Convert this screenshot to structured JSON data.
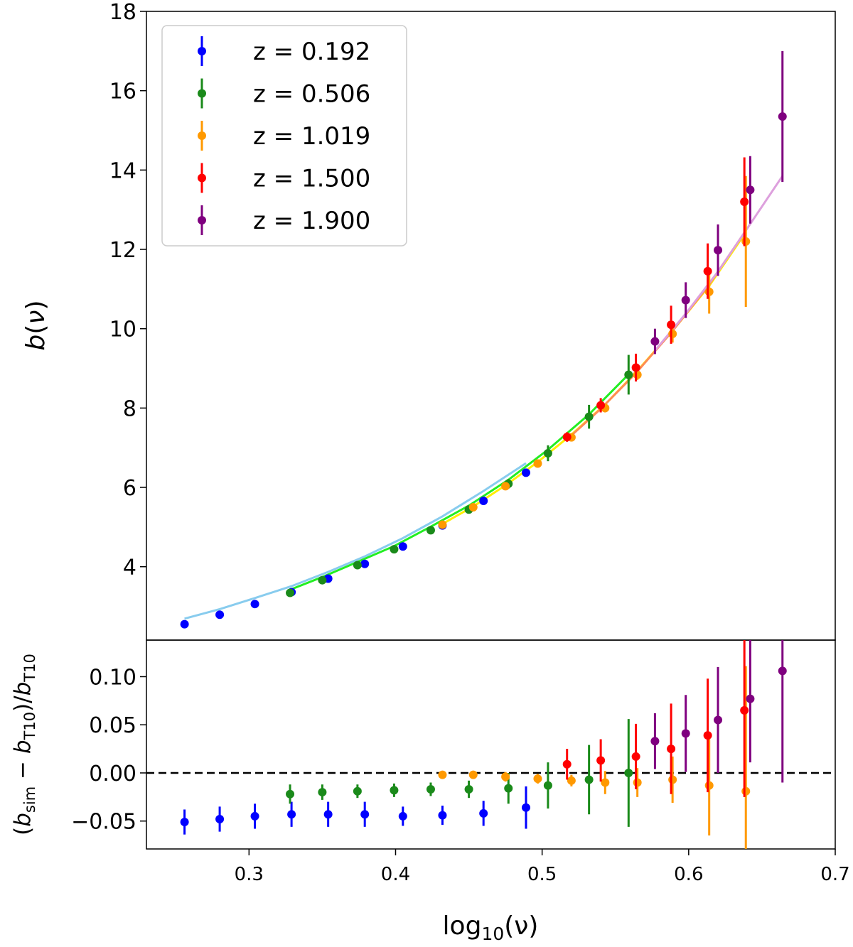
{
  "chart_data": [
    {
      "type": "scatter",
      "panel": "top",
      "ylabel_var": "b",
      "ylabel_arg": "ν",
      "ylabel": "b(ν)",
      "xlim": [
        0.23,
        0.7
      ],
      "ylim": [
        2.15,
        18
      ],
      "yticks": [
        4,
        6,
        8,
        10,
        12,
        14,
        16,
        18
      ],
      "grid": false,
      "legend_position": "top-left",
      "series": [
        {
          "name": "z = 0.192",
          "color": "#0000ff",
          "points": [
            {
              "x": 0.256,
              "y": 2.55,
              "err": 0.06
            },
            {
              "x": 0.28,
              "y": 2.79,
              "err": 0.06
            },
            {
              "x": 0.304,
              "y": 3.06,
              "err": 0.06
            },
            {
              "x": 0.329,
              "y": 3.36,
              "err": 0.07
            },
            {
              "x": 0.354,
              "y": 3.7,
              "err": 0.07
            },
            {
              "x": 0.379,
              "y": 4.07,
              "err": 0.07
            },
            {
              "x": 0.405,
              "y": 4.51,
              "err": 0.08
            },
            {
              "x": 0.432,
              "y": 5.04,
              "err": 0.08
            },
            {
              "x": 0.46,
              "y": 5.66,
              "err": 0.08
            },
            {
              "x": 0.489,
              "y": 6.37,
              "err": 0.1
            }
          ],
          "curve": {
            "color": "#88ccee",
            "x": [
              0.256,
              0.28,
              0.304,
              0.329,
              0.354,
              0.379,
              0.405,
              0.432,
              0.46,
              0.489
            ],
            "y": [
              2.69,
              2.93,
              3.21,
              3.51,
              3.87,
              4.26,
              4.72,
              5.27,
              5.91,
              6.61
            ]
          }
        },
        {
          "name": "z = 0.506",
          "color": "#1a8a1a",
          "points": [
            {
              "x": 0.328,
              "y": 3.34,
              "err": 0.07
            },
            {
              "x": 0.35,
              "y": 3.66,
              "err": 0.07
            },
            {
              "x": 0.374,
              "y": 4.04,
              "err": 0.08
            },
            {
              "x": 0.399,
              "y": 4.44,
              "err": 0.08
            },
            {
              "x": 0.424,
              "y": 4.92,
              "err": 0.08
            },
            {
              "x": 0.45,
              "y": 5.44,
              "err": 0.1
            },
            {
              "x": 0.477,
              "y": 6.09,
              "err": 0.12
            },
            {
              "x": 0.504,
              "y": 6.86,
              "err": 0.2
            },
            {
              "x": 0.532,
              "y": 7.78,
              "err": 0.3
            },
            {
              "x": 0.559,
              "y": 8.84,
              "err": 0.5
            }
          ],
          "curve": {
            "color": "#22ee22",
            "x": [
              0.328,
              0.35,
              0.374,
              0.399,
              0.424,
              0.45,
              0.477,
              0.504,
              0.532,
              0.559
            ],
            "y": [
              3.42,
              3.74,
              4.12,
              4.52,
              5.01,
              5.54,
              6.19,
              6.95,
              7.84,
              8.85
            ]
          }
        },
        {
          "name": "z = 1.019",
          "color": "#ff9900",
          "points": [
            {
              "x": 0.432,
              "y": 5.06,
              "err": 0.06
            },
            {
              "x": 0.453,
              "y": 5.5,
              "err": 0.07
            },
            {
              "x": 0.475,
              "y": 6.03,
              "err": 0.08
            },
            {
              "x": 0.497,
              "y": 6.6,
              "err": 0.08
            },
            {
              "x": 0.52,
              "y": 7.26,
              "err": 0.09
            },
            {
              "x": 0.543,
              "y": 8.0,
              "err": 0.11
            },
            {
              "x": 0.565,
              "y": 8.84,
              "err": 0.13
            },
            {
              "x": 0.589,
              "y": 9.87,
              "err": 0.22
            },
            {
              "x": 0.614,
              "y": 10.93,
              "err": 0.55
            },
            {
              "x": 0.639,
              "y": 12.2,
              "err": 1.65
            }
          ],
          "curve": {
            "color": "#ffee00",
            "x": [
              0.432,
              0.453,
              0.475,
              0.497,
              0.52,
              0.543,
              0.565,
              0.589,
              0.614,
              0.639
            ],
            "y": [
              5.08,
              5.52,
              6.05,
              6.64,
              7.33,
              8.09,
              8.94,
              9.95,
              11.08,
              12.43
            ]
          }
        },
        {
          "name": "z = 1.500",
          "color": "#ff0000",
          "points": [
            {
              "x": 0.517,
              "y": 7.27,
              "err": 0.12
            },
            {
              "x": 0.54,
              "y": 8.07,
              "err": 0.18
            },
            {
              "x": 0.564,
              "y": 9.02,
              "err": 0.35
            },
            {
              "x": 0.588,
              "y": 10.1,
              "err": 0.48
            },
            {
              "x": 0.613,
              "y": 11.45,
              "err": 0.7
            },
            {
              "x": 0.638,
              "y": 13.2,
              "err": 1.12
            }
          ],
          "curve": {
            "color": "#ff8c55",
            "x": [
              0.517,
              0.54,
              0.564,
              0.588,
              0.613,
              0.638
            ],
            "y": [
              7.21,
              7.98,
              8.88,
              9.9,
              11.06,
              12.42
            ]
          }
        },
        {
          "name": "z = 1.900",
          "color": "#7f007f",
          "points": [
            {
              "x": 0.577,
              "y": 9.68,
              "err": 0.32
            },
            {
              "x": 0.598,
              "y": 10.72,
              "err": 0.45
            },
            {
              "x": 0.62,
              "y": 11.98,
              "err": 0.65
            },
            {
              "x": 0.642,
              "y": 13.5,
              "err": 0.85
            },
            {
              "x": 0.664,
              "y": 15.35,
              "err": 1.65
            }
          ],
          "curve": {
            "color": "#dda0dd",
            "x": [
              0.577,
              0.598,
              0.62,
              0.642,
              0.664
            ],
            "y": [
              9.45,
              10.38,
              11.44,
              12.64,
              13.85
            ]
          }
        }
      ]
    },
    {
      "type": "scatter",
      "panel": "bottom",
      "xlabel_base": "log",
      "xlabel_sub": "10",
      "xlabel_arg": "(ν)",
      "xlabel": "log10(ν)",
      "ylabel": "(b_sim − b_T10)/b_T10",
      "ylabel_parts": {
        "open": "(",
        "b": "b",
        "sim": "sim",
        "minus": " − ",
        "t10": "T10",
        "close": ")/"
      },
      "xlim": [
        0.23,
        0.7
      ],
      "ylim": [
        -0.079,
        0.138
      ],
      "xticks": [
        0.3,
        0.4,
        0.5,
        0.6,
        0.7
      ],
      "xtick_labels": [
        "0.3",
        "0.4",
        "0.5",
        "0.6",
        "0.7"
      ],
      "yticks": [
        -0.05,
        0.0,
        0.05,
        0.1
      ],
      "ytick_labels": [
        "−0.05",
        "0.00",
        "0.05",
        "0.10"
      ],
      "reference_line": {
        "y": 0.0,
        "style": "dashed",
        "color": "#000000"
      },
      "grid": false,
      "series": [
        {
          "name": "z = 0.192",
          "color": "#0000ff",
          "points": [
            {
              "x": 0.256,
              "y": -0.051,
              "err": 0.013
            },
            {
              "x": 0.28,
              "y": -0.048,
              "err": 0.013
            },
            {
              "x": 0.304,
              "y": -0.045,
              "err": 0.013
            },
            {
              "x": 0.329,
              "y": -0.043,
              "err": 0.013
            },
            {
              "x": 0.354,
              "y": -0.043,
              "err": 0.013
            },
            {
              "x": 0.379,
              "y": -0.043,
              "err": 0.013
            },
            {
              "x": 0.405,
              "y": -0.045,
              "err": 0.01
            },
            {
              "x": 0.432,
              "y": -0.044,
              "err": 0.01
            },
            {
              "x": 0.46,
              "y": -0.042,
              "err": 0.013
            },
            {
              "x": 0.489,
              "y": -0.036,
              "err": 0.022
            }
          ]
        },
        {
          "name": "z = 0.506",
          "color": "#1a8a1a",
          "points": [
            {
              "x": 0.328,
              "y": -0.022,
              "err": 0.01
            },
            {
              "x": 0.35,
              "y": -0.02,
              "err": 0.008
            },
            {
              "x": 0.374,
              "y": -0.019,
              "err": 0.007
            },
            {
              "x": 0.399,
              "y": -0.018,
              "err": 0.007
            },
            {
              "x": 0.424,
              "y": -0.017,
              "err": 0.007
            },
            {
              "x": 0.45,
              "y": -0.017,
              "err": 0.009
            },
            {
              "x": 0.477,
              "y": -0.016,
              "err": 0.016
            },
            {
              "x": 0.504,
              "y": -0.013,
              "err": 0.024
            },
            {
              "x": 0.532,
              "y": -0.007,
              "err": 0.036
            },
            {
              "x": 0.559,
              "y": 0.0,
              "err": 0.056
            }
          ]
        },
        {
          "name": "z = 1.019",
          "color": "#ff9900",
          "points": [
            {
              "x": 0.432,
              "y": -0.002,
              "err": 0.004
            },
            {
              "x": 0.453,
              "y": -0.002,
              "err": 0.004
            },
            {
              "x": 0.475,
              "y": -0.004,
              "err": 0.005
            },
            {
              "x": 0.497,
              "y": -0.006,
              "err": 0.005
            },
            {
              "x": 0.52,
              "y": -0.008,
              "err": 0.006
            },
            {
              "x": 0.543,
              "y": -0.01,
              "err": 0.012
            },
            {
              "x": 0.565,
              "y": -0.01,
              "err": 0.015
            },
            {
              "x": 0.589,
              "y": -0.007,
              "err": 0.024
            },
            {
              "x": 0.614,
              "y": -0.013,
              "err": 0.052
            },
            {
              "x": 0.639,
              "y": -0.019,
              "err": 0.13
            }
          ]
        },
        {
          "name": "z = 1.500",
          "color": "#ff0000",
          "points": [
            {
              "x": 0.517,
              "y": 0.009,
              "err": 0.016
            },
            {
              "x": 0.54,
              "y": 0.013,
              "err": 0.022
            },
            {
              "x": 0.564,
              "y": 0.017,
              "err": 0.034
            },
            {
              "x": 0.588,
              "y": 0.025,
              "err": 0.047
            },
            {
              "x": 0.613,
              "y": 0.039,
              "err": 0.059
            },
            {
              "x": 0.638,
              "y": 0.065,
              "err": 0.09
            }
          ]
        },
        {
          "name": "z = 1.900",
          "color": "#7f007f",
          "points": [
            {
              "x": 0.577,
              "y": 0.033,
              "err": 0.029
            },
            {
              "x": 0.598,
              "y": 0.041,
              "err": 0.04
            },
            {
              "x": 0.62,
              "y": 0.055,
              "err": 0.055
            },
            {
              "x": 0.642,
              "y": 0.077,
              "err": 0.066
            },
            {
              "x": 0.664,
              "y": 0.106,
              "err": 0.116
            }
          ]
        }
      ]
    }
  ]
}
